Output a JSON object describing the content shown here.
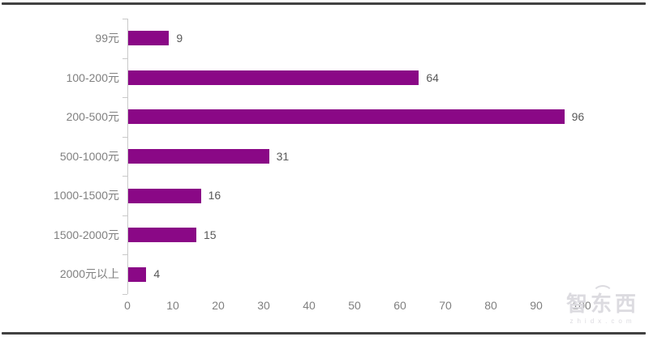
{
  "chart_data": {
    "type": "bar",
    "orientation": "horizontal",
    "title": "",
    "categories": [
      "99元",
      "100-200元",
      "200-500元",
      "500-1000元",
      "1000-1500元",
      "1500-2000元",
      "2000元以上"
    ],
    "values": [
      9,
      64,
      96,
      31,
      16,
      15,
      4
    ],
    "xlabel": "",
    "ylabel": "",
    "xlim": [
      0,
      100
    ],
    "x_ticks": [
      0,
      10,
      20,
      30,
      40,
      50,
      60,
      70,
      80,
      90,
      100
    ],
    "grid": false,
    "legend": "none",
    "value_labels_shown": true,
    "bar_color": "#8A0886"
  },
  "colors": {
    "bar": "#8A0886",
    "axis": "#C9C9C9",
    "category_label": "#808080",
    "value_label": "#595959",
    "tick_label": "#808080",
    "frame_rule": "#414141",
    "watermark": "#DCDBE0",
    "background": "#FFFFFF"
  },
  "watermark": {
    "logo_text": "智东西",
    "site_text": "zhidx.com"
  }
}
